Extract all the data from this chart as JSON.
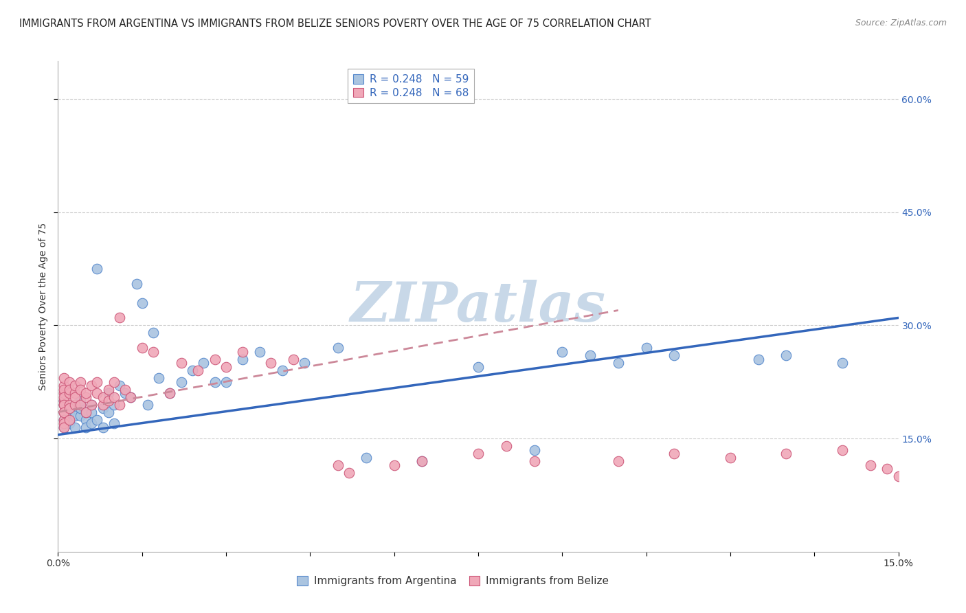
{
  "title": "IMMIGRANTS FROM ARGENTINA VS IMMIGRANTS FROM BELIZE SENIORS POVERTY OVER THE AGE OF 75 CORRELATION CHART",
  "source": "Source: ZipAtlas.com",
  "ylabel": "Seniors Poverty Over the Age of 75",
  "xlim": [
    0,
    0.15
  ],
  "ylim": [
    0,
    0.65
  ],
  "xticks": [
    0.0,
    0.015,
    0.03,
    0.045,
    0.06,
    0.075,
    0.09,
    0.105,
    0.12,
    0.135,
    0.15
  ],
  "xtick_labels_show": [
    "0.0%",
    "",
    "",
    "",
    "",
    "",
    "",
    "",
    "",
    "",
    "15.0%"
  ],
  "yticks_right": [
    0.15,
    0.3,
    0.45,
    0.6
  ],
  "ytick_labels_right": [
    "15.0%",
    "30.0%",
    "45.0%",
    "60.0%"
  ],
  "argentina_color": "#aac4e0",
  "argentina_edge_color": "#5588cc",
  "belize_color": "#f0a8b8",
  "belize_edge_color": "#cc5577",
  "trend_argentina_color": "#3366bb",
  "trend_belize_color": "#cc8899",
  "legend_arg_label": "R = 0.248   N = 59",
  "legend_bel_label": "R = 0.248   N = 68",
  "bottom_arg_label": "Immigrants from Argentina",
  "bottom_bel_label": "Immigrants from Belize",
  "background_color": "#ffffff",
  "grid_color": "#cccccc",
  "watermark_text": "ZIPatlas",
  "watermark_color": "#c8d8e8",
  "title_fontsize": 10.5,
  "source_fontsize": 9,
  "axis_label_fontsize": 10,
  "tick_fontsize": 10,
  "legend_fontsize": 11,
  "argentina_x": [
    0.001,
    0.001,
    0.001,
    0.001,
    0.001,
    0.002,
    0.002,
    0.002,
    0.003,
    0.003,
    0.003,
    0.004,
    0.004,
    0.004,
    0.005,
    0.005,
    0.005,
    0.006,
    0.006,
    0.006,
    0.007,
    0.007,
    0.008,
    0.008,
    0.009,
    0.009,
    0.01,
    0.01,
    0.011,
    0.012,
    0.013,
    0.014,
    0.015,
    0.016,
    0.017,
    0.018,
    0.02,
    0.022,
    0.024,
    0.026,
    0.028,
    0.03,
    0.033,
    0.036,
    0.04,
    0.044,
    0.05,
    0.055,
    0.065,
    0.075,
    0.085,
    0.09,
    0.095,
    0.1,
    0.105,
    0.11,
    0.125,
    0.13,
    0.14
  ],
  "argentina_y": [
    0.175,
    0.185,
    0.195,
    0.165,
    0.2,
    0.175,
    0.185,
    0.17,
    0.18,
    0.195,
    0.165,
    0.18,
    0.19,
    0.2,
    0.175,
    0.165,
    0.185,
    0.195,
    0.17,
    0.185,
    0.375,
    0.175,
    0.19,
    0.165,
    0.21,
    0.185,
    0.195,
    0.17,
    0.22,
    0.21,
    0.205,
    0.355,
    0.33,
    0.195,
    0.29,
    0.23,
    0.21,
    0.225,
    0.24,
    0.25,
    0.225,
    0.225,
    0.255,
    0.265,
    0.24,
    0.25,
    0.27,
    0.125,
    0.12,
    0.245,
    0.135,
    0.265,
    0.26,
    0.25,
    0.27,
    0.26,
    0.255,
    0.26,
    0.25
  ],
  "belize_x": [
    0.001,
    0.001,
    0.001,
    0.001,
    0.001,
    0.001,
    0.001,
    0.001,
    0.001,
    0.001,
    0.001,
    0.001,
    0.001,
    0.002,
    0.002,
    0.002,
    0.002,
    0.002,
    0.002,
    0.003,
    0.003,
    0.003,
    0.003,
    0.004,
    0.004,
    0.004,
    0.005,
    0.005,
    0.005,
    0.006,
    0.006,
    0.007,
    0.007,
    0.008,
    0.008,
    0.009,
    0.009,
    0.01,
    0.01,
    0.011,
    0.011,
    0.012,
    0.013,
    0.015,
    0.017,
    0.02,
    0.022,
    0.025,
    0.028,
    0.03,
    0.033,
    0.038,
    0.042,
    0.05,
    0.052,
    0.06,
    0.065,
    0.075,
    0.08,
    0.085,
    0.1,
    0.11,
    0.12,
    0.13,
    0.14,
    0.145,
    0.148,
    0.15
  ],
  "belize_y": [
    0.2,
    0.21,
    0.185,
    0.175,
    0.195,
    0.22,
    0.23,
    0.215,
    0.205,
    0.195,
    0.185,
    0.17,
    0.165,
    0.195,
    0.21,
    0.225,
    0.19,
    0.175,
    0.215,
    0.21,
    0.22,
    0.195,
    0.205,
    0.225,
    0.215,
    0.195,
    0.205,
    0.185,
    0.21,
    0.22,
    0.195,
    0.21,
    0.225,
    0.195,
    0.205,
    0.215,
    0.2,
    0.225,
    0.205,
    0.31,
    0.195,
    0.215,
    0.205,
    0.27,
    0.265,
    0.21,
    0.25,
    0.24,
    0.255,
    0.245,
    0.265,
    0.25,
    0.255,
    0.115,
    0.105,
    0.115,
    0.12,
    0.13,
    0.14,
    0.12,
    0.12,
    0.13,
    0.125,
    0.13,
    0.135,
    0.115,
    0.11,
    0.1
  ],
  "trend_arg_x0": 0.0,
  "trend_arg_y0": 0.155,
  "trend_arg_x1": 0.15,
  "trend_arg_y1": 0.31,
  "trend_bel_x0": 0.0,
  "trend_bel_y0": 0.185,
  "trend_bel_x1": 0.1,
  "trend_bel_y1": 0.32
}
